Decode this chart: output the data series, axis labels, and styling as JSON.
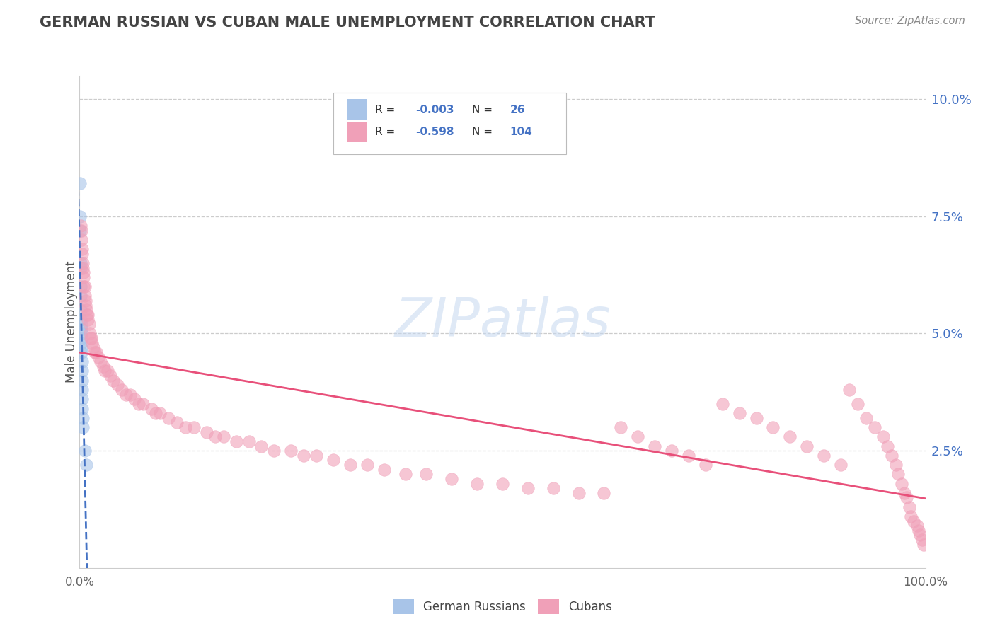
{
  "title": "GERMAN RUSSIAN VS CUBAN MALE UNEMPLOYMENT CORRELATION CHART",
  "source": "Source: ZipAtlas.com",
  "ylabel": "Male Unemployment",
  "blue_color": "#a8c4e8",
  "pink_color": "#f0a0b8",
  "line_blue_color": "#4472c4",
  "line_pink_color": "#e8507a",
  "watermark_color": "#c5d8f0",
  "axis_color": "#cccccc",
  "tick_color": "#4472c4",
  "title_color": "#444444",
  "source_color": "#888888",
  "ylabel_color": "#555555",
  "legend_border": "#bbbbbb",
  "legend_text_color": "#333333",
  "legend_val_color": "#4472c4",
  "gr_x": [
    0.0005,
    0.0005,
    0.0008,
    0.001,
    0.001,
    0.0012,
    0.0012,
    0.0015,
    0.0015,
    0.002,
    0.002,
    0.002,
    0.002,
    0.002,
    0.002,
    0.0025,
    0.003,
    0.003,
    0.003,
    0.003,
    0.003,
    0.003,
    0.004,
    0.004,
    0.006,
    0.008
  ],
  "gr_y": [
    0.082,
    0.075,
    0.072,
    0.065,
    0.064,
    0.06,
    0.058,
    0.055,
    0.053,
    0.052,
    0.051,
    0.05,
    0.049,
    0.048,
    0.047,
    0.046,
    0.044,
    0.042,
    0.04,
    0.038,
    0.036,
    0.034,
    0.032,
    0.03,
    0.025,
    0.022
  ],
  "cu_x": [
    0.001,
    0.002,
    0.002,
    0.003,
    0.003,
    0.004,
    0.004,
    0.005,
    0.005,
    0.005,
    0.006,
    0.006,
    0.007,
    0.007,
    0.008,
    0.009,
    0.01,
    0.01,
    0.011,
    0.012,
    0.013,
    0.014,
    0.015,
    0.016,
    0.018,
    0.02,
    0.022,
    0.025,
    0.028,
    0.03,
    0.033,
    0.036,
    0.04,
    0.045,
    0.05,
    0.055,
    0.06,
    0.065,
    0.07,
    0.075,
    0.085,
    0.09,
    0.095,
    0.105,
    0.115,
    0.125,
    0.135,
    0.15,
    0.16,
    0.17,
    0.185,
    0.2,
    0.215,
    0.23,
    0.25,
    0.265,
    0.28,
    0.3,
    0.32,
    0.34,
    0.36,
    0.385,
    0.41,
    0.44,
    0.47,
    0.5,
    0.53,
    0.56,
    0.59,
    0.62,
    0.64,
    0.66,
    0.68,
    0.7,
    0.72,
    0.74,
    0.76,
    0.78,
    0.8,
    0.82,
    0.84,
    0.86,
    0.88,
    0.9,
    0.91,
    0.92,
    0.93,
    0.94,
    0.95,
    0.955,
    0.96,
    0.965,
    0.968,
    0.972,
    0.975,
    0.978,
    0.981,
    0.983,
    0.986,
    0.99,
    0.992,
    0.994,
    0.996,
    0.998
  ],
  "cu_y": [
    0.073,
    0.072,
    0.07,
    0.068,
    0.067,
    0.065,
    0.064,
    0.063,
    0.062,
    0.06,
    0.06,
    0.058,
    0.057,
    0.056,
    0.055,
    0.054,
    0.054,
    0.053,
    0.052,
    0.05,
    0.049,
    0.049,
    0.048,
    0.047,
    0.046,
    0.046,
    0.045,
    0.044,
    0.043,
    0.042,
    0.042,
    0.041,
    0.04,
    0.039,
    0.038,
    0.037,
    0.037,
    0.036,
    0.035,
    0.035,
    0.034,
    0.033,
    0.033,
    0.032,
    0.031,
    0.03,
    0.03,
    0.029,
    0.028,
    0.028,
    0.027,
    0.027,
    0.026,
    0.025,
    0.025,
    0.024,
    0.024,
    0.023,
    0.022,
    0.022,
    0.021,
    0.02,
    0.02,
    0.019,
    0.018,
    0.018,
    0.017,
    0.017,
    0.016,
    0.016,
    0.03,
    0.028,
    0.026,
    0.025,
    0.024,
    0.022,
    0.035,
    0.033,
    0.032,
    0.03,
    0.028,
    0.026,
    0.024,
    0.022,
    0.038,
    0.035,
    0.032,
    0.03,
    0.028,
    0.026,
    0.024,
    0.022,
    0.02,
    0.018,
    0.016,
    0.015,
    0.013,
    0.011,
    0.01,
    0.009,
    0.008,
    0.007,
    0.006,
    0.005
  ],
  "ylim": [
    0.0,
    0.105
  ],
  "xlim": [
    0.0,
    1.0
  ],
  "yticks": [
    0.025,
    0.05,
    0.075,
    0.1
  ],
  "ytick_labels": [
    "2.5%",
    "5.0%",
    "7.5%",
    "10.0%"
  ],
  "gr_line_start_x": -0.005,
  "gr_line_end_x": 0.012,
  "cu_line_start_x": 0.0,
  "cu_line_end_x": 1.0
}
